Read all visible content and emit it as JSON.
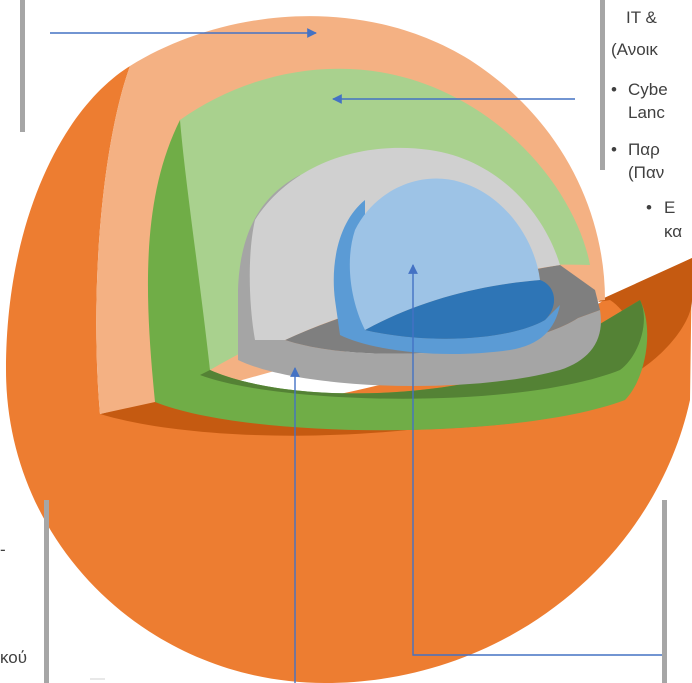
{
  "diagram": {
    "layer_colors": {
      "outer_shell": "#F4B183",
      "outer_body": "#ED7D31",
      "outer_cut_floor": "#C55A11",
      "green_wall": "#A9D18E",
      "green_ring": "#70AD47",
      "green_floor": "#548235",
      "gray_wall": "#D0D0D0",
      "gray_ring": "#A5A5A5",
      "gray_floor": "#7F7F7F",
      "core_wall": "#9DC3E6",
      "core_ring": "#5B9BD5",
      "core_floor": "#2E75B6",
      "arrow": "#4472C4",
      "bracket": "#A6A6A6"
    },
    "right_text": {
      "title_line_1": "IT &",
      "title_line_2": "(Ανοικ",
      "item_1_line_1": "Cybe",
      "item_1_line_2": "Lanc",
      "item_2_line_1": "Παρ",
      "item_2_line_2": "(Παν",
      "sub_item_line_1": "Ε",
      "sub_item_line_2": "κα"
    },
    "left_text": {
      "dash": "-",
      "fragment": "κού"
    },
    "bullet_glyph": "•"
  }
}
